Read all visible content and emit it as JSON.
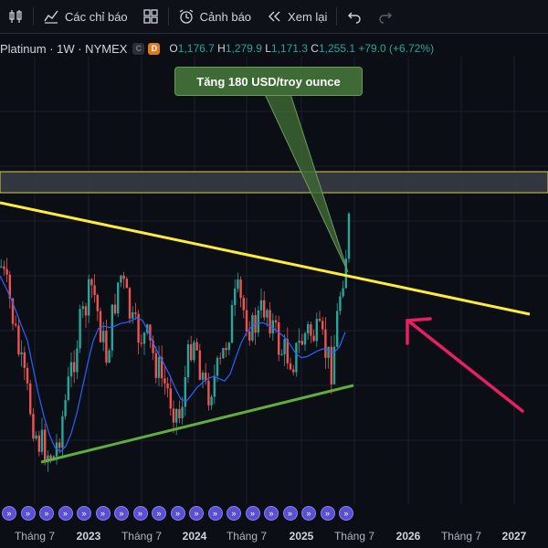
{
  "toolbar": {
    "indicators_label": "Các chỉ báo",
    "alerts_label": "Cảnh báo",
    "replay_label": "Xem lại"
  },
  "legend": {
    "symbol": "Platinum · 1W · NYMEX",
    "badge_c": "C",
    "badge_d": "D",
    "o_key": "O",
    "o_val": "1,176.7",
    "h_key": "H",
    "h_val": "1,279.9",
    "l_key": "L",
    "l_val": "1,171.3",
    "c_key": "C",
    "c_val": "1,255.1",
    "change": "+79.0 (+6.72%)"
  },
  "annotation": {
    "text": "Tăng 180 USD/troy ounce"
  },
  "colors": {
    "up": "#26a69a",
    "down": "#ef5350",
    "ma": "#2962ff",
    "resistance": "#ffeb3b",
    "support": "#4caf50",
    "arrow": "#e91e63"
  },
  "x_axis": {
    "ticks": [
      {
        "label": "Tháng 7",
        "year": false
      },
      {
        "label": "2023",
        "year": true
      },
      {
        "label": "Tháng 7",
        "year": false
      },
      {
        "label": "2024",
        "year": true
      },
      {
        "label": "Tháng 7",
        "year": false
      },
      {
        "label": "2025",
        "year": true
      },
      {
        "label": "Tháng 7",
        "year": false
      },
      {
        "label": "2026",
        "year": true
      },
      {
        "label": "Tháng 7",
        "year": false
      },
      {
        "label": "2027",
        "year": true
      }
    ]
  },
  "events": {
    "count": 19
  }
}
